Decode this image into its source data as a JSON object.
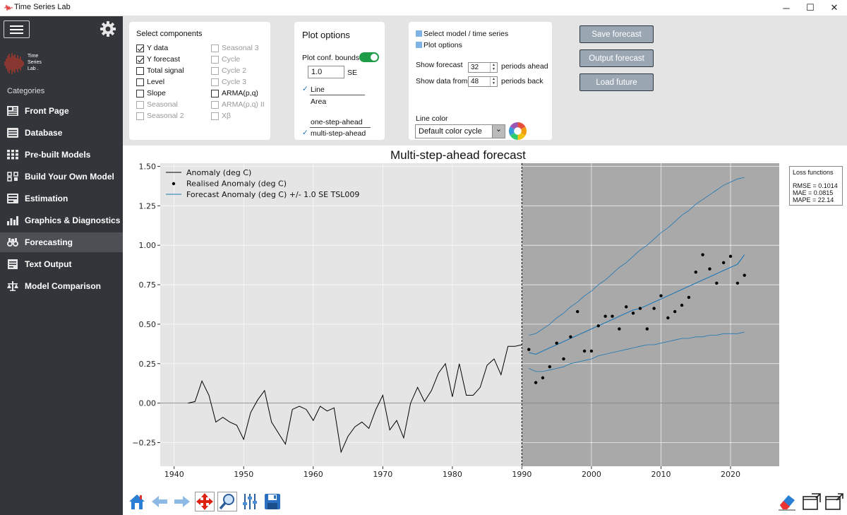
{
  "window": {
    "title": "Time Series Lab",
    "minimize": "─",
    "maximize": "☐",
    "close": "✕"
  },
  "sidebar": {
    "logo_lines": [
      "Time",
      "Series",
      "Lab"
    ],
    "logo_dot": ".",
    "categories_label": "Categories",
    "items": [
      {
        "label": "Front Page",
        "icon": "front-page-icon"
      },
      {
        "label": "Database",
        "icon": "database-icon"
      },
      {
        "label": "Pre-built Models",
        "icon": "pre-built-models-icon"
      },
      {
        "label": "Build Your Own Model",
        "icon": "build-model-icon"
      },
      {
        "label": "Estimation",
        "icon": "estimation-icon"
      },
      {
        "label": "Graphics & Diagnostics",
        "icon": "graphics-icon"
      },
      {
        "label": "Forecasting",
        "icon": "forecasting-icon",
        "active": true
      },
      {
        "label": "Text Output",
        "icon": "text-output-icon"
      },
      {
        "label": "Model Comparison",
        "icon": "model-comparison-icon"
      }
    ]
  },
  "components": {
    "heading": "Select components",
    "left": [
      {
        "label": "Y data",
        "checked": true,
        "enabled": true
      },
      {
        "label": "Y forecast",
        "checked": true,
        "enabled": true
      },
      {
        "label": "Total signal",
        "checked": false,
        "enabled": true
      },
      {
        "label": "Level",
        "checked": false,
        "enabled": true
      },
      {
        "label": "Slope",
        "checked": false,
        "enabled": true
      },
      {
        "label": "Seasonal",
        "checked": false,
        "enabled": false
      },
      {
        "label": "Seasonal 2",
        "checked": false,
        "enabled": false
      }
    ],
    "right": [
      {
        "label": "Seasonal 3",
        "checked": false,
        "enabled": false
      },
      {
        "label": "Cycle",
        "checked": false,
        "enabled": false
      },
      {
        "label": "Cycle 2",
        "checked": false,
        "enabled": false
      },
      {
        "label": "Cycle 3",
        "checked": false,
        "enabled": false
      },
      {
        "label": "ARMA(p,q)",
        "checked": false,
        "enabled": true
      },
      {
        "label": "ARMA(p,q) II",
        "checked": false,
        "enabled": false
      },
      {
        "label": "Xβ",
        "checked": false,
        "enabled": false
      }
    ]
  },
  "plot_options": {
    "heading": "Plot options",
    "conf_bounds_label": "Plot conf. bounds",
    "conf_bounds_on": true,
    "se_value": "1.0",
    "se_label": "SE",
    "style_options": [
      "Line",
      "Area"
    ],
    "style_selected": "Line",
    "check_mark": "✓",
    "mode_options": [
      "one-step-ahead",
      "multi-step-ahead"
    ],
    "mode_selected": "multi-step-ahead"
  },
  "forecast_settings": {
    "select_model_label": "Select model / time series",
    "plot_options_label": "Plot options",
    "show_forecast_label": "Show forecast",
    "forecast_periods": "32",
    "periods_ahead_label": "periods ahead",
    "show_data_label": "Show data from",
    "data_periods": "48",
    "periods_back_label": "periods back",
    "line_color_label": "Line color",
    "line_color_value": "Default color cycle",
    "spin_up": "▲",
    "spin_down": "▼",
    "dropdown_arrow": "⌄"
  },
  "actions": {
    "save_forecast": "Save forecast",
    "output_forecast": "Output forecast",
    "load_future": "Load future"
  },
  "plot": {
    "title": "Multi-step-ahead forecast",
    "loss_title": "Loss functions",
    "loss_values": [
      "RMSE = 0.1014",
      "MAE = 0.0815",
      "MAPE = 22.14"
    ]
  },
  "toolbar": {
    "icons": [
      "home-icon",
      "back-arrow-icon",
      "forward-arrow-icon",
      "pan-icon",
      "zoom-icon",
      "configure-subplots-icon",
      "save-figure-icon"
    ],
    "right_icons": [
      "eraser-icon",
      "window-restore-icon",
      "window-export-icon"
    ]
  },
  "colors": {
    "sidebar": "#323539",
    "sidebar_active": "#4c5055",
    "toggle_on": "#1f9c47",
    "button": "#9aa6b2",
    "plot_history_bg": "#e5e5e5",
    "plot_forecast_bg": "#a9a9a9",
    "forecast_line": "#1f77b4"
  },
  "chart_data": {
    "type": "line",
    "title": "Multi-step-ahead forecast",
    "xlabel": "",
    "ylabel": "",
    "xlim": [
      1938,
      2027
    ],
    "ylim": [
      -0.4,
      1.52
    ],
    "x_ticks": [
      1940,
      1950,
      1960,
      1970,
      1980,
      1990,
      2000,
      2010,
      2020
    ],
    "y_ticks": [
      -0.25,
      0.0,
      0.25,
      0.5,
      0.75,
      1.0,
      1.25,
      1.5
    ],
    "y_tick_labels": [
      "−0.25",
      "0.00",
      "0.25",
      "0.50",
      "0.75",
      "1.00",
      "1.25",
      "1.50"
    ],
    "forecast_origin": 1990,
    "grid": true,
    "legend_position": "top-left",
    "legend": [
      "Anomaly (deg C)",
      "Realised Anomaly (deg C)",
      "Forecast Anomaly (deg C) +/- 1.0 SE TSL009"
    ],
    "series": [
      {
        "name": "Anomaly (deg C)",
        "type": "line",
        "color": "#000000",
        "x": [
          1942,
          1943,
          1944,
          1945,
          1946,
          1947,
          1948,
          1949,
          1950,
          1951,
          1952,
          1953,
          1954,
          1955,
          1956,
          1957,
          1958,
          1959,
          1960,
          1961,
          1962,
          1963,
          1964,
          1965,
          1966,
          1967,
          1968,
          1969,
          1970,
          1971,
          1972,
          1973,
          1974,
          1975,
          1976,
          1977,
          1978,
          1979,
          1980,
          1981,
          1982,
          1983,
          1984,
          1985,
          1986,
          1987,
          1988,
          1989,
          1990
        ],
        "y": [
          0.0,
          0.01,
          0.14,
          0.05,
          -0.12,
          -0.09,
          -0.12,
          -0.14,
          -0.23,
          -0.06,
          0.02,
          0.08,
          -0.12,
          -0.19,
          -0.26,
          -0.04,
          -0.02,
          -0.04,
          -0.11,
          -0.02,
          -0.05,
          -0.03,
          -0.31,
          -0.21,
          -0.15,
          -0.12,
          -0.16,
          -0.04,
          0.05,
          -0.17,
          -0.11,
          -0.22,
          0.0,
          0.1,
          0.01,
          0.08,
          0.19,
          0.25,
          0.04,
          0.25,
          0.05,
          0.05,
          0.1,
          0.24,
          0.28,
          0.18,
          0.36,
          0.36,
          0.37
        ]
      },
      {
        "name": "Realised Anomaly (deg C)",
        "type": "scatter",
        "color": "#000000",
        "x": [
          1991,
          1992,
          1993,
          1994,
          1995,
          1996,
          1997,
          1998,
          1999,
          2000,
          2001,
          2002,
          2003,
          2004,
          2005,
          2006,
          2007,
          2008,
          2009,
          2010,
          2011,
          2012,
          2013,
          2014,
          2015,
          2016,
          2017,
          2018,
          2019,
          2020,
          2021,
          2022
        ],
        "y": [
          0.34,
          0.13,
          0.16,
          0.23,
          0.38,
          0.28,
          0.42,
          0.58,
          0.33,
          0.33,
          0.49,
          0.55,
          0.55,
          0.47,
          0.61,
          0.57,
          0.6,
          0.47,
          0.6,
          0.68,
          0.54,
          0.58,
          0.62,
          0.67,
          0.83,
          0.94,
          0.85,
          0.76,
          0.89,
          0.93,
          0.76,
          0.81
        ]
      },
      {
        "name": "Forecast Anomaly (deg C) +/- 1.0 SE TSL009",
        "type": "line",
        "color": "#1f77b4",
        "x": [
          1991,
          1992,
          1993,
          1994,
          1995,
          1996,
          1997,
          1998,
          1999,
          2000,
          2001,
          2002,
          2003,
          2004,
          2005,
          2006,
          2007,
          2008,
          2009,
          2010,
          2011,
          2012,
          2013,
          2014,
          2015,
          2016,
          2017,
          2018,
          2019,
          2020,
          2021,
          2022
        ],
        "y": [
          0.32,
          0.31,
          0.33,
          0.35,
          0.37,
          0.39,
          0.41,
          0.43,
          0.45,
          0.47,
          0.49,
          0.51,
          0.53,
          0.55,
          0.57,
          0.59,
          0.6,
          0.62,
          0.64,
          0.66,
          0.68,
          0.7,
          0.72,
          0.74,
          0.76,
          0.78,
          0.8,
          0.82,
          0.84,
          0.86,
          0.88,
          0.94
        ],
        "upper": [
          0.43,
          0.44,
          0.47,
          0.5,
          0.54,
          0.57,
          0.61,
          0.64,
          0.68,
          0.71,
          0.75,
          0.78,
          0.82,
          0.86,
          0.89,
          0.93,
          0.97,
          1.0,
          1.04,
          1.08,
          1.11,
          1.15,
          1.19,
          1.22,
          1.26,
          1.29,
          1.32,
          1.35,
          1.38,
          1.4,
          1.42,
          1.43
        ],
        "lower": [
          0.22,
          0.2,
          0.2,
          0.21,
          0.22,
          0.23,
          0.25,
          0.26,
          0.27,
          0.28,
          0.3,
          0.31,
          0.32,
          0.33,
          0.34,
          0.35,
          0.36,
          0.37,
          0.37,
          0.38,
          0.39,
          0.4,
          0.41,
          0.41,
          0.42,
          0.42,
          0.43,
          0.43,
          0.44,
          0.44,
          0.44,
          0.45
        ]
      }
    ]
  }
}
